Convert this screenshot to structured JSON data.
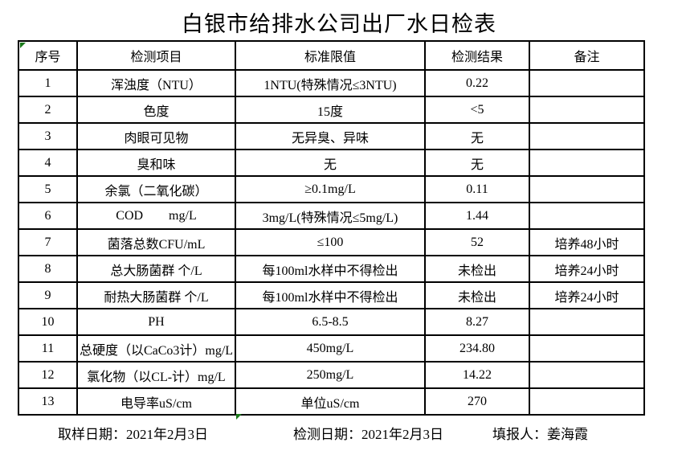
{
  "title": "白银市给排水公司出厂水日检表",
  "colors": {
    "background": "#ffffff",
    "grid_line": "#000000",
    "text": "#000000",
    "indicator_green": "#1a7a1a"
  },
  "icons": {
    "header_corner": "green-triangle-error-indicator",
    "bottom_marker": "green-triangle-marker"
  },
  "table": {
    "headers": [
      "序号",
      "检测项目",
      "标准限值",
      "检测结果",
      "备注"
    ],
    "rows": [
      {
        "no": "1",
        "item": "浑浊度（NTU）",
        "limit": "1NTU(特殊情况≤3NTU)",
        "result": "0.22",
        "note": ""
      },
      {
        "no": "2",
        "item": "色度",
        "limit": "15度",
        "result": "<5",
        "note": ""
      },
      {
        "no": "3",
        "item": "肉眼可见物",
        "limit": "无异臭、异味",
        "result": "无",
        "note": ""
      },
      {
        "no": "4",
        "item": "臭和味",
        "limit": "无",
        "result": "无",
        "note": ""
      },
      {
        "no": "5",
        "item": "余氯（二氧化碳）",
        "limit": "≥0.1mg/L",
        "result": "0.11",
        "note": ""
      },
      {
        "no": "6",
        "item": "COD        mg/L",
        "limit": "3mg/L(特殊情况≤5mg/L)",
        "result": "1.44",
        "note": ""
      },
      {
        "no": "7",
        "item": "菌落总数CFU/mL",
        "limit": "≤100",
        "result": "52",
        "note": "培养48小时"
      },
      {
        "no": "8",
        "item": "总大肠菌群 个/L",
        "limit": "每100ml水样中不得检出",
        "result": "未检出",
        "note": "培养24小时"
      },
      {
        "no": "9",
        "item": "耐热大肠菌群 个/L",
        "limit": "每100ml水样中不得检出",
        "result": "未检出",
        "note": "培养24小时"
      },
      {
        "no": "10",
        "item": "PH",
        "limit": "6.5-8.5",
        "result": "8.27",
        "note": ""
      },
      {
        "no": "11",
        "item": "总硬度（以CaCo3计）mg/L",
        "limit": "450mg/L",
        "result": "234.80",
        "note": ""
      },
      {
        "no": "12",
        "item": "氯化物（以CL-计）mg/L",
        "limit": "250mg/L",
        "result": "14.22",
        "note": ""
      },
      {
        "no": "13",
        "item": "电导率uS/cm",
        "limit": "单位uS/cm",
        "result": "270",
        "note": ""
      }
    ]
  },
  "footer": {
    "sampling": "取样日期：2021年2月3日",
    "testing": "检测日期：2021年2月3日",
    "reporter": "填报人：姜海霞"
  }
}
